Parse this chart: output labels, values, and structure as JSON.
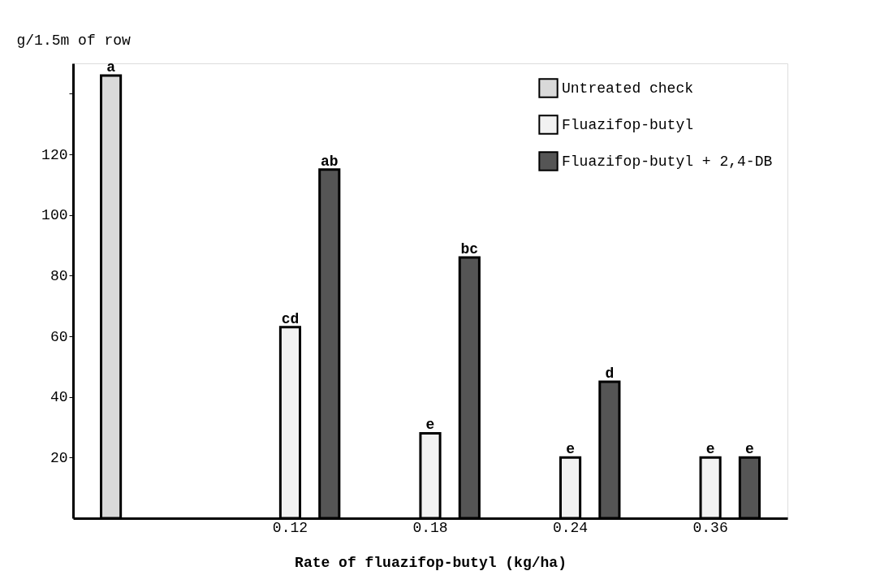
{
  "chart_data": {
    "type": "bar",
    "xlabel": "Rate of fluazifop-butyl (kg/ha)",
    "ylabel": "g/1.5m of row",
    "categories": [
      null,
      "0.12",
      "0.18",
      "0.24",
      "0.36"
    ],
    "series": [
      {
        "name": "Untreated check",
        "color": "#d9d9d9",
        "values": [
          146,
          null,
          null,
          null,
          null
        ],
        "value_labels": [
          "a",
          null,
          null,
          null,
          null
        ]
      },
      {
        "name": "Fluazifop-butyl",
        "color": "#f2f2f2",
        "values": [
          null,
          63,
          28,
          20,
          20
        ],
        "value_labels": [
          null,
          "cd",
          "e",
          "e",
          "e"
        ]
      },
      {
        "name": "Fluazifop-butyl + 2,4-DB",
        "color": "#555555",
        "values": [
          null,
          115,
          86,
          45,
          20
        ],
        "value_labels": [
          null,
          "ab",
          "bc",
          "d",
          "e"
        ]
      }
    ],
    "ylim": [
      0,
      150
    ],
    "yticks": [
      20,
      40,
      60,
      80,
      100,
      120,
      {
        "value": 140,
        "label": null
      }
    ],
    "grid": false,
    "legend": "top right"
  }
}
